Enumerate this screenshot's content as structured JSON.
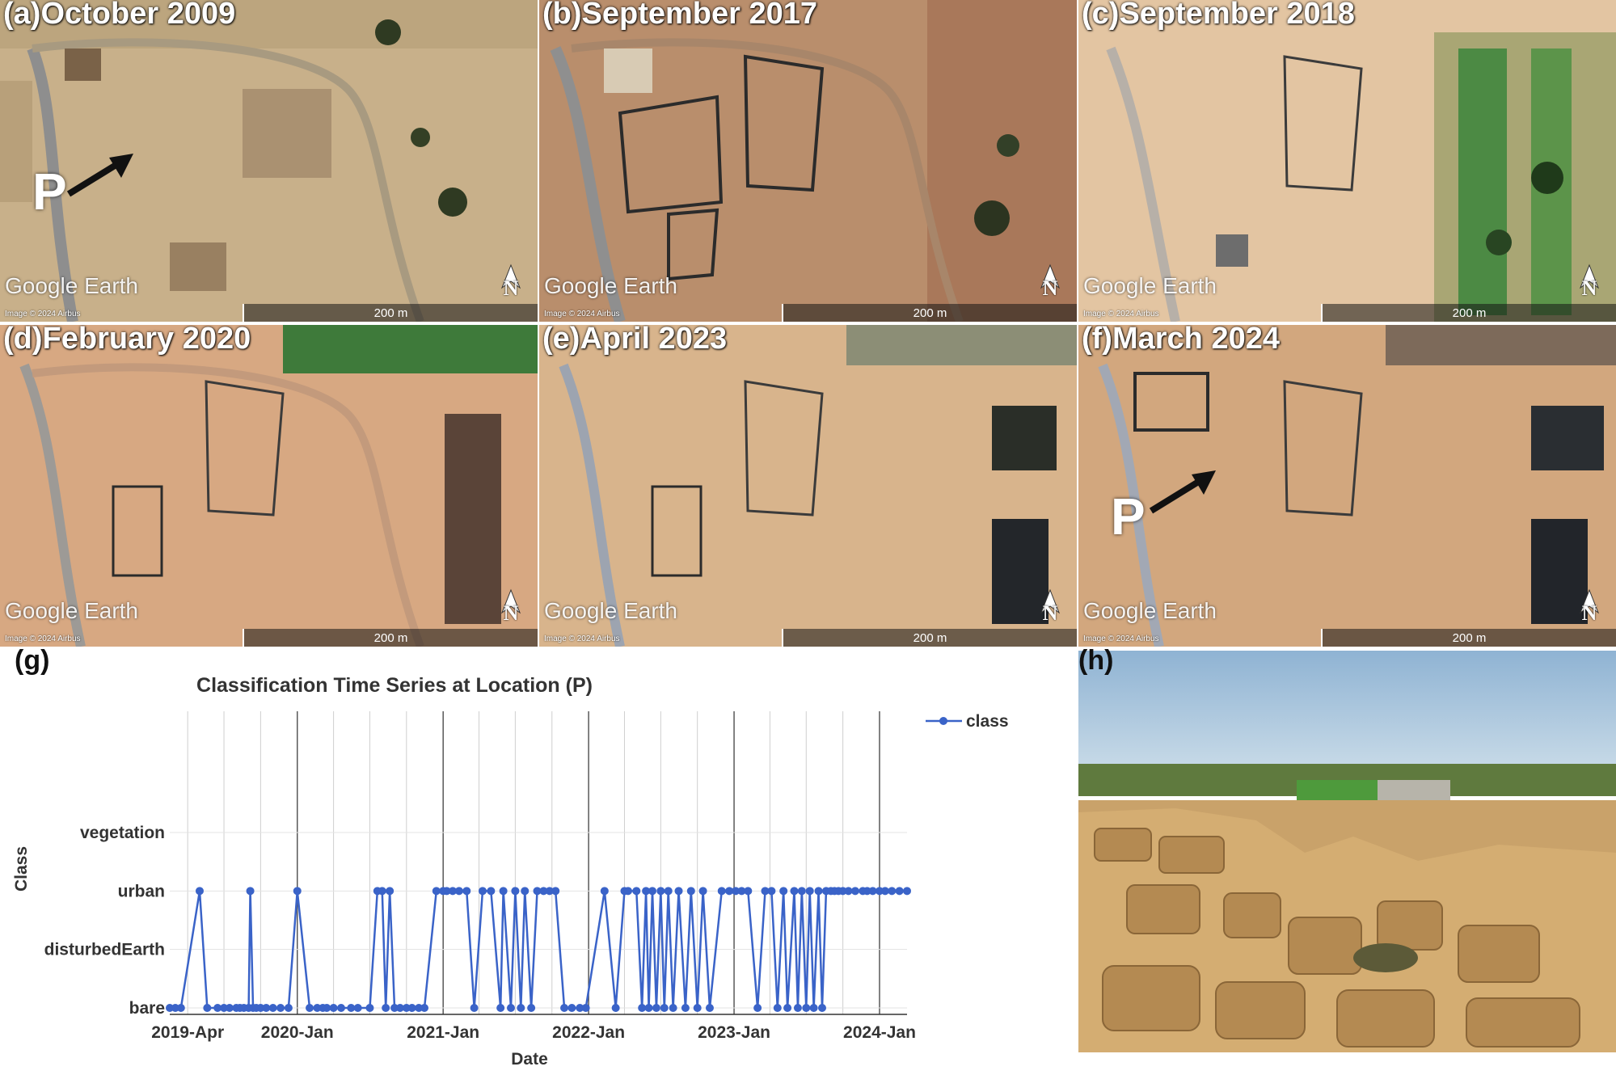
{
  "panels": [
    {
      "label": "(a)October 2009",
      "watermark": "Google Earth",
      "credit": "Image © 2024 Airbus",
      "scale": "200 m",
      "north": "N"
    },
    {
      "label": "(b)September 2017",
      "watermark": "Google Earth",
      "credit": "Image © 2024 Airbus",
      "scale": "200 m",
      "north": "N"
    },
    {
      "label": "(c)September 2018",
      "watermark": "Google Earth",
      "credit": "Image © 2024 Airbus",
      "scale": "200 m",
      "north": "N"
    },
    {
      "label": "(d)February 2020",
      "watermark": "Google Earth",
      "credit": "Image © 2024 Airbus",
      "scale": "200 m",
      "north": "N"
    },
    {
      "label": "(e)April 2023",
      "watermark": "Google Earth",
      "credit": "Image © 2024 Airbus",
      "scale": "200 m",
      "north": "N"
    },
    {
      "label": "(f)March 2024",
      "watermark": "Google Earth",
      "credit": "Image © 2024 Airbus",
      "scale": "200 m",
      "north": "N"
    }
  ],
  "location_marker": "P",
  "g_label": "(g)",
  "h_label": "(h)",
  "colors": {
    "series": "#3a63c8",
    "grid": "#d9d9d9",
    "sand": "#c9a06a",
    "sky": "#aac6dc"
  },
  "chart_data": {
    "type": "line",
    "title": "Classification Time Series at Location (P)",
    "xlabel": "Date",
    "ylabel": "Class",
    "categories_y": [
      "bare",
      "disturbedEarth",
      "urban",
      "vegetation"
    ],
    "x_tick_labels": [
      "2019-Apr",
      "2020-Jan",
      "2021-Jan",
      "2022-Jan",
      "2023-Jan",
      "2024-Jan"
    ],
    "x_ticks": [
      "2019-04-01",
      "2020-01-01",
      "2021-01-01",
      "2022-01-01",
      "2023-01-01",
      "2024-01-01"
    ],
    "xlim": [
      "2019-02-15",
      "2024-03-10"
    ],
    "grid": true,
    "legend_position": "top-right",
    "series": [
      {
        "name": "class",
        "x": [
          "2019-02-15",
          "2019-03-01",
          "2019-03-15",
          "2019-05-01",
          "2019-05-20",
          "2019-06-15",
          "2019-07-01",
          "2019-07-15",
          "2019-08-01",
          "2019-08-10",
          "2019-08-20",
          "2019-09-01",
          "2019-09-05",
          "2019-09-12",
          "2019-09-20",
          "2019-10-01",
          "2019-10-15",
          "2019-11-01",
          "2019-11-20",
          "2019-12-10",
          "2020-01-01",
          "2020-02-01",
          "2020-02-20",
          "2020-03-05",
          "2020-03-15",
          "2020-04-01",
          "2020-04-20",
          "2020-05-15",
          "2020-06-01",
          "2020-07-01",
          "2020-07-20",
          "2020-08-01",
          "2020-08-10",
          "2020-08-20",
          "2020-09-01",
          "2020-09-15",
          "2020-10-01",
          "2020-10-15",
          "2020-11-01",
          "2020-11-15",
          "2020-12-15",
          "2021-01-01",
          "2021-01-10",
          "2021-01-25",
          "2021-02-10",
          "2021-03-01",
          "2021-03-20",
          "2021-04-10",
          "2021-05-01",
          "2021-05-25",
          "2021-06-01",
          "2021-06-20",
          "2021-07-01",
          "2021-07-15",
          "2021-07-25",
          "2021-08-10",
          "2021-08-25",
          "2021-09-10",
          "2021-09-25",
          "2021-10-10",
          "2021-11-01",
          "2021-11-20",
          "2021-12-10",
          "2021-12-25",
          "2022-02-10",
          "2022-03-10",
          "2022-04-01",
          "2022-04-10",
          "2022-05-01",
          "2022-05-15",
          "2022-05-25",
          "2022-06-01",
          "2022-06-10",
          "2022-06-20",
          "2022-07-01",
          "2022-07-10",
          "2022-07-20",
          "2022-08-01",
          "2022-08-15",
          "2022-09-01",
          "2022-09-15",
          "2022-10-01",
          "2022-10-15",
          "2022-11-01",
          "2022-12-01",
          "2022-12-20",
          "2023-01-05",
          "2023-01-20",
          "2023-02-05",
          "2023-03-01",
          "2023-03-20",
          "2023-04-05",
          "2023-04-20",
          "2023-05-05",
          "2023-05-15",
          "2023-06-01",
          "2023-06-10",
          "2023-06-20",
          "2023-07-01",
          "2023-07-10",
          "2023-07-20",
          "2023-08-01",
          "2023-08-10",
          "2023-08-20",
          "2023-09-01",
          "2023-09-10",
          "2023-09-20",
          "2023-10-01",
          "2023-10-15",
          "2023-11-01",
          "2023-11-20",
          "2023-12-01",
          "2023-12-15",
          "2024-01-01",
          "2024-01-15",
          "2024-02-01",
          "2024-02-20",
          "2024-03-10"
        ],
        "y": [
          "bare",
          "bare",
          "bare",
          "urban",
          "bare",
          "bare",
          "bare",
          "bare",
          "bare",
          "bare",
          "bare",
          "bare",
          "urban",
          "bare",
          "bare",
          "bare",
          "bare",
          "bare",
          "bare",
          "bare",
          "urban",
          "bare",
          "bare",
          "bare",
          "bare",
          "bare",
          "bare",
          "bare",
          "bare",
          "bare",
          "urban",
          "urban",
          "bare",
          "urban",
          "bare",
          "bare",
          "bare",
          "bare",
          "bare",
          "bare",
          "urban",
          "urban",
          "urban",
          "urban",
          "urban",
          "urban",
          "bare",
          "urban",
          "urban",
          "bare",
          "urban",
          "bare",
          "urban",
          "bare",
          "urban",
          "bare",
          "urban",
          "urban",
          "urban",
          "urban",
          "bare",
          "bare",
          "bare",
          "bare",
          "urban",
          "bare",
          "urban",
          "urban",
          "urban",
          "bare",
          "urban",
          "bare",
          "urban",
          "bare",
          "urban",
          "bare",
          "urban",
          "bare",
          "urban",
          "bare",
          "urban",
          "bare",
          "urban",
          "bare",
          "urban",
          "urban",
          "urban",
          "urban",
          "urban",
          "bare",
          "urban",
          "urban",
          "bare",
          "urban",
          "bare",
          "urban",
          "bare",
          "urban",
          "bare",
          "urban",
          "bare",
          "urban",
          "bare",
          "urban",
          "urban",
          "urban",
          "urban",
          "urban",
          "urban",
          "urban",
          "urban",
          "urban",
          "urban",
          "urban",
          "urban",
          "urban",
          "urban",
          "urban"
        ]
      }
    ]
  }
}
